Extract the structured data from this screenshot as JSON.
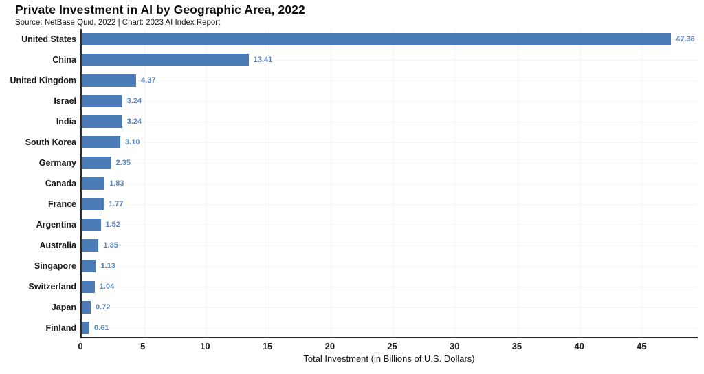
{
  "header": {
    "title": "Private Investment in AI by Geographic Area, 2022",
    "subtitle": "Source: NetBase Quid, 2022 | Chart: 2023 AI Index Report"
  },
  "colors": {
    "bar": "#4c7cb8",
    "value_label": "#5585c4",
    "axis_line": "#2d2d2d",
    "grid": "#f4f4f4",
    "title_text": "#0d0d0d",
    "body_text": "#1a1a1a",
    "background": "#ffffff"
  },
  "chart_data": {
    "type": "bar",
    "orientation": "horizontal",
    "title": "Private Investment in AI by Geographic Area, 2022",
    "subtitle": "Source: NetBase Quid, 2022 | Chart: 2023 AI Index Report",
    "xlabel": "Total Investment (in Billions of U.S. Dollars)",
    "ylabel": "",
    "categories": [
      "United States",
      "China",
      "United Kingdom",
      "Israel",
      "India",
      "South Korea",
      "Germany",
      "Canada",
      "France",
      "Argentina",
      "Australia",
      "Singapore",
      "Switzerland",
      "Japan",
      "Finland"
    ],
    "values": [
      47.36,
      13.41,
      4.37,
      3.24,
      3.24,
      3.1,
      2.35,
      1.83,
      1.77,
      1.52,
      1.35,
      1.13,
      1.04,
      0.72,
      0.61
    ],
    "value_labels": [
      "47.36",
      "13.41",
      "4.37",
      "3.24",
      "3.24",
      "3.10",
      "2.35",
      "1.83",
      "1.77",
      "1.52",
      "1.35",
      "1.13",
      "1.04",
      "0.72",
      "0.61"
    ],
    "xlim": [
      0,
      49.5
    ],
    "xticks": [
      0,
      5,
      10,
      15,
      20,
      25,
      30,
      35,
      40,
      45
    ],
    "grid": true,
    "legend": false
  }
}
